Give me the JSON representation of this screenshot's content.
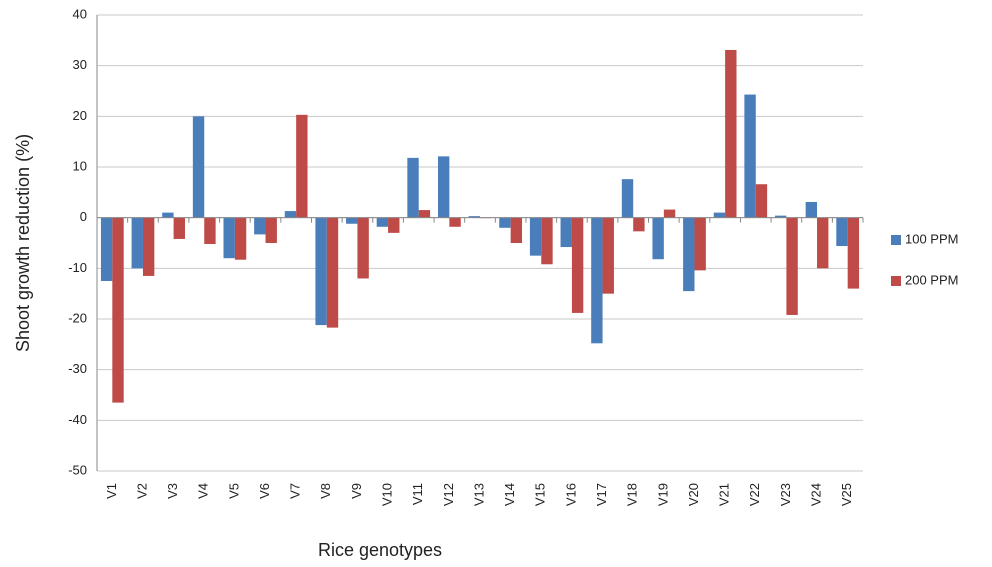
{
  "chart_data": {
    "type": "bar",
    "x_label": "Rice genotypes",
    "y_label": "Shoot growth reduction (%)",
    "categories": [
      "V1",
      "V2",
      "V3",
      "V4",
      "V5",
      "V6",
      "V7",
      "V8",
      "V9",
      "V10",
      "V11",
      "V12",
      "V13",
      "V14",
      "V15",
      "V16",
      "V17",
      "V18",
      "V19",
      "V20",
      "V21",
      "V22",
      "V23",
      "V24",
      "V25"
    ],
    "series": [
      {
        "name": "100 PPM",
        "color": "#4a7ebb",
        "values": [
          -12.5,
          -10,
          1,
          20,
          -8,
          -3.3,
          1.3,
          -21.2,
          -1.2,
          -1.8,
          11.8,
          12.1,
          0.3,
          -2,
          -7.5,
          -5.8,
          -24.8,
          7.6,
          -8.2,
          -14.5,
          1,
          24.3,
          0.4,
          3.1,
          -5.6
        ]
      },
      {
        "name": "200 PPM",
        "color": "#be4b48",
        "values": [
          -36.5,
          -11.5,
          -4.2,
          -5.2,
          -8.3,
          -5,
          20.3,
          -21.7,
          -12,
          -3,
          1.5,
          -1.8,
          -0.1,
          -5,
          -9.2,
          -18.8,
          -15,
          -2.7,
          1.6,
          -10.4,
          33.1,
          6.6,
          -19.2,
          -10,
          -14
        ]
      }
    ],
    "ylim": [
      -50,
      40
    ],
    "yticks": [
      -50,
      -40,
      -30,
      -20,
      -10,
      0,
      10,
      20,
      30,
      40
    ],
    "grid": true,
    "legend": "right"
  }
}
